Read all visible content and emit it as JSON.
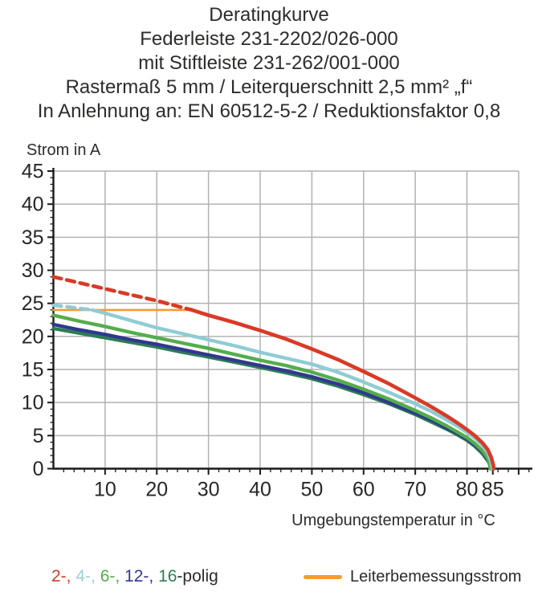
{
  "title": {
    "lines": [
      "Deratingkurve",
      "Federleiste 231-2202/026-000",
      "mit Stiftleiste 231-262/001-000",
      "Rastermaß 5 mm / Leiterquerschnitt 2,5 mm² „f“",
      "In Anlehnung an: EN 60512-5-2 / Reduktionsfaktor 0,8"
    ]
  },
  "colors": {
    "red_2pole": "#d93a26",
    "cyan_4pole": "#8fccd3",
    "green_6pole": "#54ad4c",
    "navy_12pole": "#30388f",
    "teal_16pole": "#2d7d53",
    "rated_line_orange": "#f49b33",
    "grid": "#b2b2b4",
    "axis": "#1a1a1a",
    "text": "#2d2c2a"
  },
  "legend": {
    "poles": [
      {
        "text": "2-, ",
        "color": "#d23b2a"
      },
      {
        "text": "4-, ",
        "color": "#9fcfd4"
      },
      {
        "text": "6-, ",
        "color": "#55ac4b"
      },
      {
        "text": "12-, ",
        "color": "#333a92"
      },
      {
        "text": "16",
        "color": "#2d7d53"
      },
      {
        "text": "-polig",
        "color": "#2b2b2b"
      }
    ],
    "rated_current_label": "Leiterbemessungsstrom"
  },
  "chart_data": {
    "type": "line",
    "title": "Deratingkurve",
    "xlabel": "Umgebungstemperatur in °C",
    "ylabel": "Strom in A",
    "xlim": [
      0,
      92.5
    ],
    "ylim": [
      0,
      45
    ],
    "grid": "on",
    "x_tick_labels": [
      10,
      20,
      30,
      40,
      50,
      60,
      70,
      80,
      85
    ],
    "y_tick_labels": [
      0,
      5,
      10,
      15,
      20,
      25,
      30,
      35,
      40,
      45
    ],
    "x_grid_step": 10,
    "y_grid_step": 5,
    "x_minor_step": 2,
    "y_minor_step": 1,
    "series": [
      {
        "name": "Leiterbemessungsstrom",
        "color": "#f49b33",
        "width": 2.6,
        "segments": [
          {
            "style": "solid",
            "points": [
              [
                0,
                24
              ],
              [
                26.8,
                24
              ]
            ]
          }
        ]
      },
      {
        "name": "16-polig",
        "color": "#2d7d53",
        "width": 4.4,
        "segments": [
          {
            "style": "solid",
            "points": [
              [
                0,
                21.2
              ],
              [
                5,
                20.5
              ],
              [
                10,
                19.8
              ],
              [
                15,
                19.1
              ],
              [
                20,
                18.4
              ],
              [
                25,
                17.6
              ],
              [
                30,
                16.9
              ],
              [
                35,
                16.1
              ],
              [
                40,
                15.3
              ],
              [
                45,
                14.5
              ],
              [
                50,
                13.6
              ],
              [
                55,
                12.5
              ],
              [
                60,
                11.2
              ],
              [
                65,
                9.8
              ],
              [
                70,
                8.2
              ],
              [
                73,
                7.1
              ],
              [
                76,
                6.0
              ],
              [
                78,
                5.2
              ],
              [
                80,
                4.3
              ],
              [
                81.5,
                3.4
              ],
              [
                83,
                2.3
              ],
              [
                84,
                1.2
              ],
              [
                84.7,
                0.3
              ],
              [
                84.8,
                0
              ]
            ]
          }
        ]
      },
      {
        "name": "12-polig",
        "color": "#30388f",
        "width": 4.4,
        "segments": [
          {
            "style": "solid",
            "points": [
              [
                0,
                21.8
              ],
              [
                5,
                21.0
              ],
              [
                10,
                20.3
              ],
              [
                15,
                19.5
              ],
              [
                20,
                18.8
              ],
              [
                25,
                18.0
              ],
              [
                30,
                17.2
              ],
              [
                35,
                16.4
              ],
              [
                40,
                15.6
              ],
              [
                45,
                14.8
              ],
              [
                50,
                13.9
              ],
              [
                55,
                12.8
              ],
              [
                60,
                11.5
              ],
              [
                65,
                10.0
              ],
              [
                70,
                8.4
              ],
              [
                73,
                7.4
              ],
              [
                76,
                6.2
              ],
              [
                78,
                5.4
              ],
              [
                80,
                4.5
              ],
              [
                81.5,
                3.6
              ],
              [
                83,
                2.5
              ],
              [
                84,
                1.4
              ],
              [
                84.6,
                0.4
              ],
              [
                84.7,
                0
              ]
            ]
          }
        ]
      },
      {
        "name": "6-polig",
        "color": "#54ad4c",
        "width": 4.4,
        "segments": [
          {
            "style": "solid",
            "points": [
              [
                0,
                23.2
              ],
              [
                5,
                22.3
              ],
              [
                10,
                21.5
              ],
              [
                15,
                20.6
              ],
              [
                20,
                19.8
              ],
              [
                25,
                19.0
              ],
              [
                30,
                18.2
              ],
              [
                35,
                17.3
              ],
              [
                40,
                16.4
              ],
              [
                45,
                15.6
              ],
              [
                50,
                14.6
              ],
              [
                55,
                13.4
              ],
              [
                60,
                12.0
              ],
              [
                65,
                10.5
              ],
              [
                70,
                8.8
              ],
              [
                73,
                7.7
              ],
              [
                76,
                6.5
              ],
              [
                78,
                5.6
              ],
              [
                80,
                4.7
              ],
              [
                81.5,
                3.8
              ],
              [
                83,
                2.7
              ],
              [
                84,
                1.6
              ],
              [
                84.4,
                0.5
              ],
              [
                84.5,
                0
              ]
            ]
          }
        ]
      },
      {
        "name": "4-polig",
        "color": "#8fccd3",
        "width": 4.4,
        "segments": [
          {
            "style": "dashed",
            "points": [
              [
                0,
                24.7
              ],
              [
                3,
                24.45
              ],
              [
                6,
                24.15
              ],
              [
                7.5,
                24.0
              ]
            ]
          },
          {
            "style": "solid",
            "points": [
              [
                7.5,
                24.0
              ],
              [
                10,
                23.5
              ],
              [
                15,
                22.4
              ],
              [
                20,
                21.3
              ],
              [
                25,
                20.4
              ],
              [
                30,
                19.5
              ],
              [
                35,
                18.6
              ],
              [
                40,
                17.6
              ],
              [
                45,
                16.7
              ],
              [
                50,
                15.8
              ],
              [
                55,
                14.6
              ],
              [
                60,
                13.1
              ],
              [
                65,
                11.5
              ],
              [
                70,
                9.8
              ],
              [
                73,
                8.7
              ],
              [
                76,
                7.4
              ],
              [
                78,
                6.5
              ],
              [
                80,
                5.5
              ],
              [
                81.5,
                4.6
              ],
              [
                83,
                3.5
              ],
              [
                84,
                2.4
              ],
              [
                84.6,
                1.2
              ],
              [
                84.9,
                0
              ]
            ]
          }
        ]
      },
      {
        "name": "2-polig",
        "color": "#d93a26",
        "width": 4.6,
        "segments": [
          {
            "style": "dashed",
            "points": [
              [
                0,
                29
              ],
              [
                5,
                28.1
              ],
              [
                10,
                27.2
              ],
              [
                15,
                26.3
              ],
              [
                20,
                25.4
              ],
              [
                25,
                24.35
              ],
              [
                26.8,
                24
              ]
            ]
          },
          {
            "style": "solid",
            "points": [
              [
                26.8,
                24
              ],
              [
                30,
                23.2
              ],
              [
                35,
                22.1
              ],
              [
                40,
                20.9
              ],
              [
                45,
                19.6
              ],
              [
                50,
                18.1
              ],
              [
                55,
                16.5
              ],
              [
                60,
                14.7
              ],
              [
                65,
                12.8
              ],
              [
                70,
                10.7
              ],
              [
                73,
                9.4
              ],
              [
                76,
                8.0
              ],
              [
                78,
                7.0
              ],
              [
                80,
                5.9
              ],
              [
                81.5,
                5.0
              ],
              [
                83,
                3.9
              ],
              [
                84,
                2.9
              ],
              [
                84.7,
                1.7
              ],
              [
                85.1,
                0.5
              ],
              [
                85.2,
                0
              ]
            ]
          }
        ]
      }
    ]
  }
}
